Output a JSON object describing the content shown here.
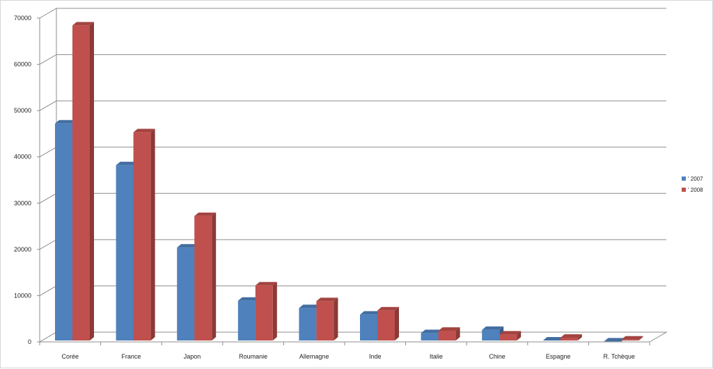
{
  "chart_data": {
    "type": "bar",
    "categories": [
      "Corée",
      "France",
      "Japon",
      "Roumanie",
      "Allemagne",
      "Inde",
      "Italie",
      "Chine",
      "Espagne",
      "R. Tchèque"
    ],
    "series": [
      {
        "name": "' 2007",
        "color": "#4f81bd",
        "values": [
          47200,
          38200,
          20400,
          8900,
          7300,
          5900,
          1900,
          2600,
          300,
          100
        ]
      },
      {
        "name": "' 2008",
        "color": "#c0504d",
        "values": [
          68400,
          45300,
          27200,
          12200,
          8800,
          6800,
          2400,
          1600,
          900,
          500
        ]
      }
    ],
    "ylim": [
      0,
      70000
    ],
    "yticks": [
      "0",
      "10000",
      "20000",
      "30000",
      "40000",
      "50000",
      "60000",
      "70000"
    ],
    "grid": true,
    "legend_position": "right",
    "title": "",
    "xlabel": "",
    "ylabel": ""
  }
}
